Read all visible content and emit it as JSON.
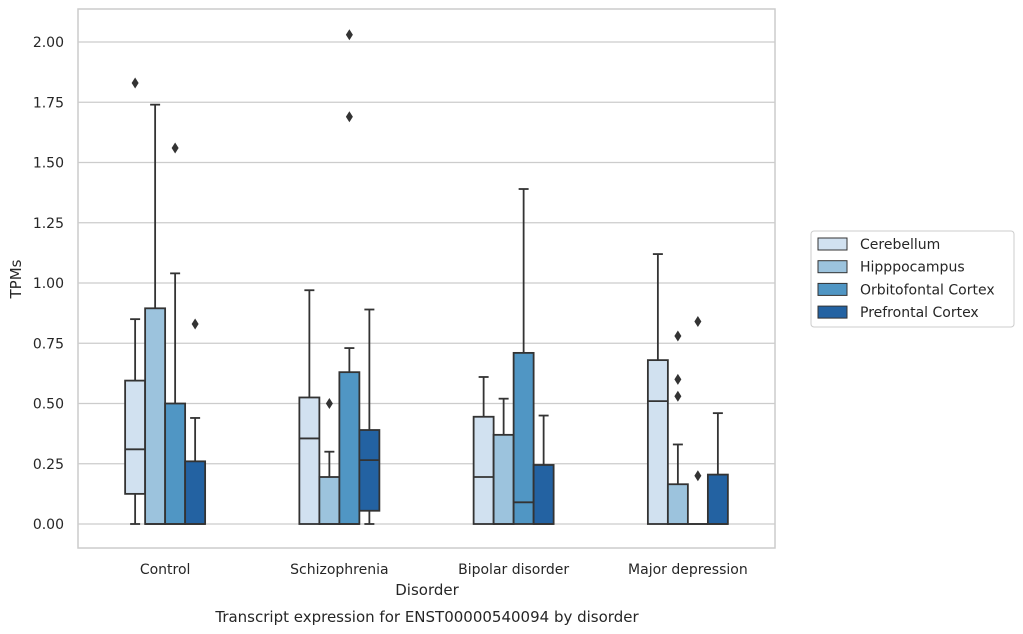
{
  "chart_data": {
    "type": "box",
    "caption": "Transcript expression for ENST00000540094 by disorder",
    "xlabel": "Disorder",
    "ylabel": "TPMs",
    "ylim": [
      -0.1,
      2.13
    ],
    "yticks": [
      "0.00",
      "0.25",
      "0.50",
      "0.75",
      "1.00",
      "1.25",
      "1.50",
      "1.75",
      "2.00"
    ],
    "grid": "horizontal",
    "legend_position": "right",
    "categories": [
      "Control",
      "Schizophrenia",
      "Bipolar disorder",
      "Major depression"
    ],
    "series": [
      {
        "name": "Cerebellum",
        "color": "#d1e1f0",
        "boxes": [
          {
            "low": 0.0,
            "q1": 0.125,
            "median": 0.31,
            "q3": 0.595,
            "high": 0.85,
            "outliers": [
              1.83
            ]
          },
          {
            "low": 0.0,
            "q1": 0.0,
            "median": 0.355,
            "q3": 0.525,
            "high": 0.97,
            "outliers": []
          },
          {
            "low": 0.0,
            "q1": 0.0,
            "median": 0.195,
            "q3": 0.445,
            "high": 0.61,
            "outliers": []
          },
          {
            "low": 0.0,
            "q1": 0.0,
            "median": 0.51,
            "q3": 0.68,
            "high": 1.12,
            "outliers": []
          }
        ]
      },
      {
        "name": "Hipppocampus",
        "color": "#9cc3dd",
        "boxes": [
          {
            "low": 0.0,
            "q1": 0.0,
            "median": 0.0,
            "q3": 0.895,
            "high": 1.74,
            "outliers": []
          },
          {
            "low": 0.0,
            "q1": 0.0,
            "median": 0.0,
            "q3": 0.195,
            "high": 0.3,
            "outliers": [
              0.5
            ]
          },
          {
            "low": 0.0,
            "q1": 0.0,
            "median": 0.0,
            "q3": 0.37,
            "high": 0.52,
            "outliers": []
          },
          {
            "low": 0.0,
            "q1": 0.0,
            "median": 0.0,
            "q3": 0.165,
            "high": 0.33,
            "outliers": [
              0.53,
              0.6,
              0.78
            ]
          }
        ]
      },
      {
        "name": "Orbitofontal Cortex",
        "color": "#5096c4",
        "boxes": [
          {
            "low": 0.0,
            "q1": 0.0,
            "median": 0.0,
            "q3": 0.5,
            "high": 1.04,
            "outliers": [
              1.56
            ]
          },
          {
            "low": 0.0,
            "q1": 0.0,
            "median": 0.0,
            "q3": 0.63,
            "high": 0.73,
            "outliers": [
              1.69,
              2.03
            ]
          },
          {
            "low": 0.0,
            "q1": 0.0,
            "median": 0.09,
            "q3": 0.71,
            "high": 1.39,
            "outliers": []
          },
          {
            "low": 0.0,
            "q1": 0.0,
            "median": 0.0,
            "q3": 0.0,
            "high": 0.0,
            "outliers": [
              0.2,
              0.84
            ]
          }
        ]
      },
      {
        "name": "Prefrontal Cortex",
        "color": "#2362a2",
        "boxes": [
          {
            "low": 0.0,
            "q1": 0.0,
            "median": 0.0,
            "q3": 0.26,
            "high": 0.44,
            "outliers": [
              0.83
            ]
          },
          {
            "low": 0.0,
            "q1": 0.055,
            "median": 0.265,
            "q3": 0.39,
            "high": 0.89,
            "outliers": []
          },
          {
            "low": 0.0,
            "q1": 0.0,
            "median": 0.0,
            "q3": 0.245,
            "high": 0.45,
            "outliers": []
          },
          {
            "low": 0.0,
            "q1": 0.0,
            "median": 0.0,
            "q3": 0.205,
            "high": 0.46,
            "outliers": []
          }
        ]
      }
    ]
  }
}
